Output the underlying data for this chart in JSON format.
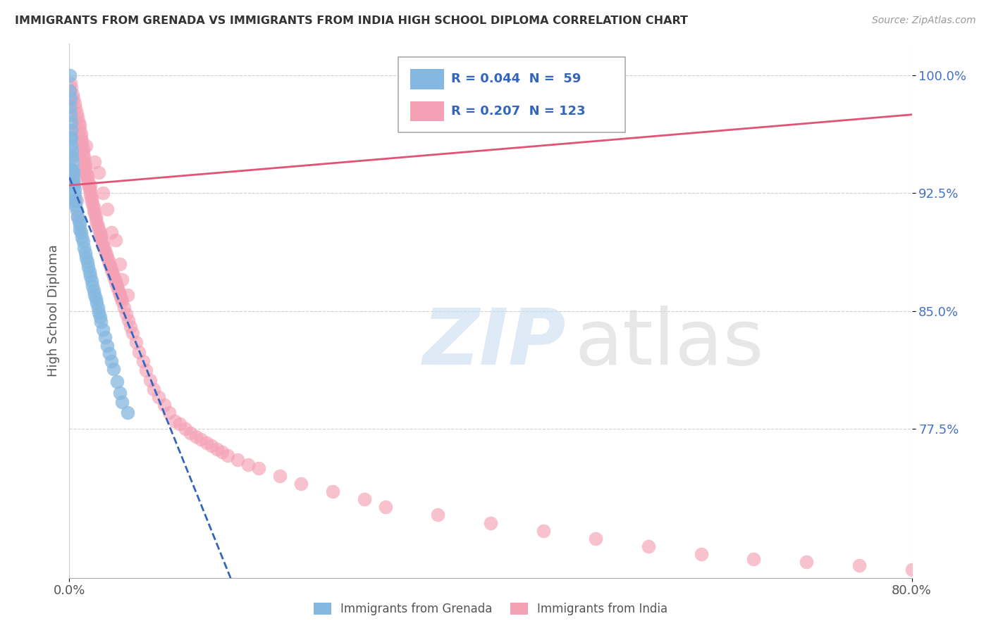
{
  "title": "IMMIGRANTS FROM GRENADA VS IMMIGRANTS FROM INDIA HIGH SCHOOL DIPLOMA CORRELATION CHART",
  "source": "Source: ZipAtlas.com",
  "ylabel": "High School Diploma",
  "legend_blue_r": "R = 0.044",
  "legend_blue_n": "N =  59",
  "legend_pink_r": "R = 0.207",
  "legend_pink_n": "N = 123",
  "legend_label_blue": "Immigrants from Grenada",
  "legend_label_pink": "Immigrants from India",
  "blue_color": "#85b8e0",
  "pink_color": "#f4a0b5",
  "blue_line_color": "#3366bb",
  "pink_line_color": "#e05575",
  "xmin": 0.0,
  "xmax": 80.0,
  "ymin": 68.0,
  "ymax": 102.0,
  "yticks": [
    100.0,
    92.5,
    85.0,
    77.5
  ],
  "blue_trend": [
    0.0,
    6.0,
    93.5,
    83.5
  ],
  "pink_trend": [
    0.0,
    80.0,
    93.0,
    97.5
  ],
  "blue_x": [
    0.05,
    0.05,
    0.1,
    0.1,
    0.15,
    0.15,
    0.2,
    0.2,
    0.25,
    0.25,
    0.3,
    0.3,
    0.35,
    0.4,
    0.4,
    0.45,
    0.5,
    0.5,
    0.6,
    0.6,
    0.7,
    0.8,
    0.9,
    1.0,
    1.0,
    1.1,
    1.2,
    1.3,
    1.4,
    1.5,
    1.6,
    1.7,
    1.8,
    1.9,
    2.0,
    2.1,
    2.2,
    2.3,
    2.4,
    2.5,
    2.6,
    2.7,
    2.8,
    2.9,
    3.0,
    3.2,
    3.4,
    3.6,
    3.8,
    4.0,
    4.2,
    4.5,
    4.8,
    5.0,
    5.5,
    0.05,
    0.1,
    0.15,
    0.2
  ],
  "blue_y": [
    100.0,
    99.0,
    98.5,
    97.5,
    97.0,
    96.5,
    96.0,
    95.5,
    95.2,
    94.8,
    94.5,
    94.0,
    93.8,
    93.5,
    93.2,
    93.0,
    92.7,
    92.4,
    92.0,
    91.7,
    91.4,
    91.0,
    90.7,
    90.5,
    90.2,
    90.0,
    89.7,
    89.4,
    89.0,
    88.7,
    88.4,
    88.1,
    87.8,
    87.5,
    87.2,
    86.9,
    86.6,
    86.3,
    86.0,
    85.8,
    85.5,
    85.2,
    84.9,
    84.6,
    84.3,
    83.8,
    83.3,
    82.8,
    82.3,
    81.8,
    81.3,
    80.5,
    79.8,
    79.2,
    78.5,
    98.0,
    96.0,
    94.0,
    92.0
  ],
  "pink_x": [
    0.1,
    0.2,
    0.3,
    0.4,
    0.5,
    0.6,
    0.7,
    0.8,
    0.9,
    1.0,
    1.0,
    1.1,
    1.1,
    1.2,
    1.2,
    1.3,
    1.3,
    1.4,
    1.4,
    1.5,
    1.5,
    1.6,
    1.7,
    1.7,
    1.8,
    1.8,
    1.9,
    2.0,
    2.0,
    2.1,
    2.1,
    2.2,
    2.3,
    2.3,
    2.4,
    2.5,
    2.5,
    2.6,
    2.7,
    2.8,
    2.9,
    3.0,
    3.0,
    3.1,
    3.2,
    3.3,
    3.4,
    3.5,
    3.6,
    3.7,
    3.8,
    3.9,
    4.0,
    4.1,
    4.2,
    4.3,
    4.4,
    4.5,
    4.6,
    4.7,
    4.8,
    4.9,
    5.0,
    5.2,
    5.4,
    5.6,
    5.8,
    6.0,
    6.3,
    6.6,
    7.0,
    7.3,
    7.7,
    8.0,
    8.5,
    9.0,
    9.5,
    10.0,
    10.5,
    11.0,
    11.5,
    12.0,
    12.5,
    13.0,
    13.5,
    14.0,
    14.5,
    15.0,
    16.0,
    17.0,
    18.0,
    20.0,
    22.0,
    25.0,
    28.0,
    30.0,
    35.0,
    40.0,
    45.0,
    50.0,
    55.0,
    60.0,
    65.0,
    70.0,
    75.0,
    80.0,
    0.4,
    0.5,
    0.6,
    0.7,
    0.8,
    1.2,
    1.6,
    2.0,
    2.4,
    2.8,
    3.2,
    3.6,
    4.0,
    4.4,
    4.8,
    5.0,
    5.5
  ],
  "pink_y": [
    99.5,
    99.2,
    98.8,
    98.5,
    98.2,
    97.9,
    97.6,
    97.3,
    97.0,
    96.8,
    96.5,
    96.3,
    96.0,
    95.8,
    95.5,
    95.3,
    95.0,
    94.8,
    94.5,
    94.3,
    94.0,
    93.8,
    93.6,
    93.4,
    93.2,
    93.0,
    92.8,
    92.6,
    92.4,
    92.2,
    92.0,
    91.8,
    91.6,
    91.4,
    91.2,
    91.0,
    90.8,
    90.6,
    90.4,
    90.2,
    90.0,
    89.8,
    89.6,
    89.4,
    89.2,
    89.0,
    88.8,
    88.6,
    88.4,
    88.2,
    88.0,
    87.8,
    87.6,
    87.4,
    87.2,
    87.0,
    86.8,
    86.6,
    86.4,
    86.2,
    86.0,
    85.8,
    85.6,
    85.2,
    84.8,
    84.4,
    84.0,
    83.6,
    83.0,
    82.4,
    81.8,
    81.2,
    80.6,
    80.0,
    79.5,
    79.0,
    78.5,
    78.0,
    77.8,
    77.5,
    77.2,
    77.0,
    76.8,
    76.6,
    76.4,
    76.2,
    76.0,
    75.8,
    75.5,
    75.2,
    75.0,
    74.5,
    74.0,
    73.5,
    73.0,
    72.5,
    72.0,
    71.5,
    71.0,
    70.5,
    70.0,
    69.5,
    69.2,
    69.0,
    68.8,
    68.5,
    96.5,
    95.0,
    93.5,
    92.0,
    91.0,
    94.0,
    95.5,
    93.0,
    94.5,
    93.8,
    92.5,
    91.5,
    90.0,
    89.5,
    88.0,
    87.0,
    86.0
  ]
}
